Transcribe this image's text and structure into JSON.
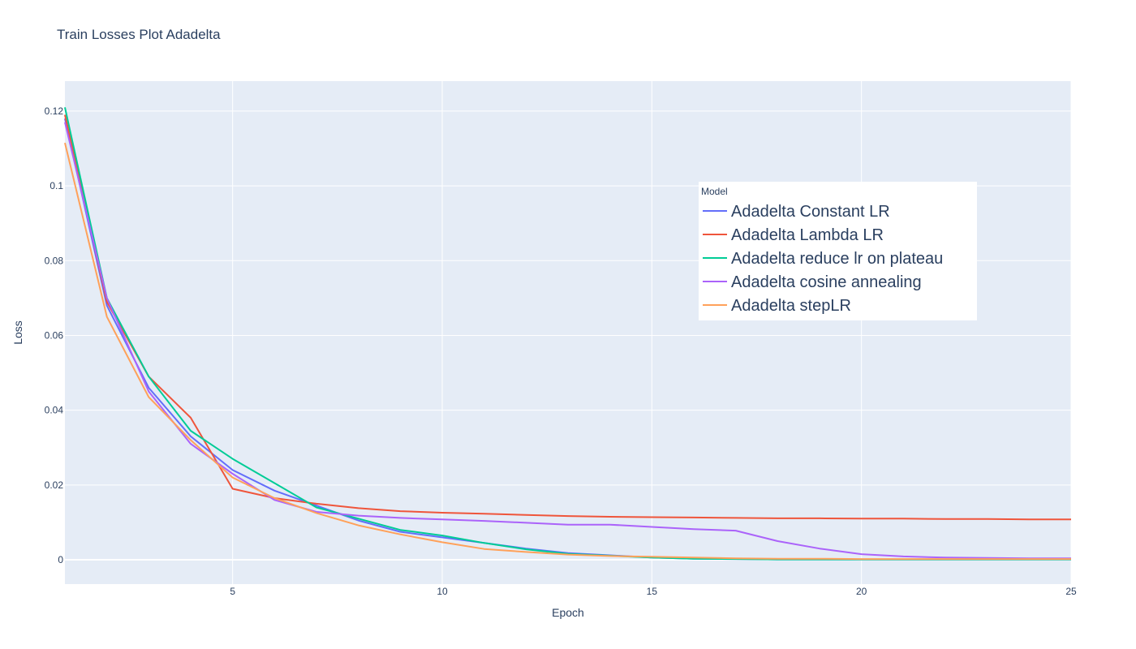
{
  "chart_data": {
    "type": "line",
    "title": "Train Losses Plot Adadelta",
    "xlabel": "Epoch",
    "ylabel": "Loss",
    "xlim": [
      1,
      25
    ],
    "ylim": [
      -0.0065,
      0.128
    ],
    "xticks": [
      5,
      10,
      15,
      20,
      25
    ],
    "xtick_labels": [
      "5",
      "10",
      "15",
      "20",
      "25"
    ],
    "yticks": [
      0,
      0.02,
      0.04,
      0.06,
      0.08,
      0.1,
      0.12
    ],
    "ytick_labels": [
      "0",
      "0.02",
      "0.04",
      "0.06",
      "0.08",
      "0.1",
      "0.12"
    ],
    "grid": true,
    "legend_title": "Model",
    "legend_position": "top-right",
    "x": [
      1,
      2,
      3,
      4,
      5,
      6,
      7,
      8,
      9,
      10,
      11,
      12,
      13,
      14,
      15,
      16,
      17,
      18,
      19,
      20,
      21,
      22,
      23,
      24,
      25
    ],
    "series": [
      {
        "name": "Adadelta Constant LR",
        "color": "#636efa",
        "values": [
          0.118,
          0.068,
          0.046,
          0.033,
          0.024,
          0.0185,
          0.0145,
          0.0105,
          0.0075,
          0.006,
          0.0045,
          0.003,
          0.0018,
          0.0012,
          0.0006,
          0.0003,
          0.0002,
          0.0001,
          0.0001,
          0.0001,
          0.0001,
          0.0001,
          0.0001,
          0.0001,
          0.0001
        ]
      },
      {
        "name": "Adadelta Lambda LR",
        "color": "#ef553b",
        "values": [
          0.119,
          0.069,
          0.049,
          0.038,
          0.019,
          0.0165,
          0.015,
          0.0138,
          0.013,
          0.0126,
          0.0123,
          0.012,
          0.0117,
          0.0115,
          0.0114,
          0.0113,
          0.0112,
          0.0111,
          0.0111,
          0.011,
          0.011,
          0.0109,
          0.0109,
          0.0108,
          0.0108
        ]
      },
      {
        "name": "Adadelta reduce lr on plateau",
        "color": "#00cc96",
        "values": [
          0.121,
          0.07,
          0.049,
          0.0345,
          0.027,
          0.0205,
          0.014,
          0.011,
          0.008,
          0.0065,
          0.0045,
          0.0028,
          0.0016,
          0.0011,
          0.0006,
          0.0003,
          0.0002,
          0.0001,
          0.0001,
          0.0001,
          0.0001,
          0.0001,
          0.0001,
          0.0001,
          0.0001
        ]
      },
      {
        "name": "Adadelta cosine annealing",
        "color": "#ab63fa",
        "values": [
          0.117,
          0.07,
          0.045,
          0.031,
          0.023,
          0.016,
          0.0128,
          0.0118,
          0.0112,
          0.0108,
          0.0104,
          0.0099,
          0.0094,
          0.0094,
          0.0088,
          0.0082,
          0.0078,
          0.005,
          0.003,
          0.0015,
          0.0009,
          0.0006,
          0.0005,
          0.0004,
          0.0004
        ]
      },
      {
        "name": "Adadelta stepLR",
        "color": "#ffa15a",
        "values": [
          0.1115,
          0.065,
          0.0435,
          0.032,
          0.022,
          0.0165,
          0.0125,
          0.0092,
          0.0068,
          0.0047,
          0.0029,
          0.0021,
          0.0014,
          0.001,
          0.0008,
          0.0006,
          0.0004,
          0.0003,
          0.0003,
          0.0002,
          0.0002,
          0.0002,
          0.0002,
          0.0002,
          0.0002
        ]
      }
    ]
  }
}
